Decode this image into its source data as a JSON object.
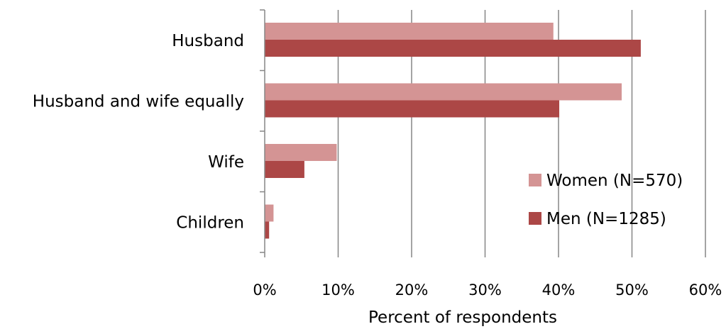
{
  "chart_data": {
    "type": "bar",
    "orientation": "horizontal",
    "categories": [
      "Husband",
      "Husband and wife equally",
      "Wife",
      "Children"
    ],
    "series": [
      {
        "name": "Women (N=570)",
        "values": [
          39.3,
          48.6,
          9.8,
          1.2
        ],
        "color": "#d49494"
      },
      {
        "name": "Men (N=1285)",
        "values": [
          51.2,
          40.1,
          5.4,
          0.6
        ],
        "color": "#ac4746"
      }
    ],
    "xlabel": "Percent of respondents",
    "ylabel": "",
    "xlim": [
      0,
      60
    ],
    "x_ticks": [
      0,
      10,
      20,
      30,
      40,
      50,
      60
    ],
    "x_tick_labels": [
      "0%",
      "10%",
      "20%",
      "30%",
      "40%",
      "50%",
      "60%"
    ],
    "grid": "vertical",
    "legend_position": "bottom-right inside"
  }
}
